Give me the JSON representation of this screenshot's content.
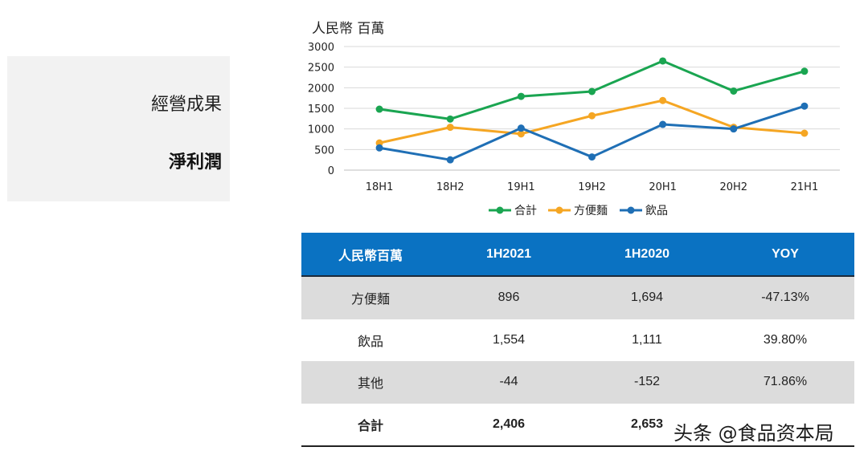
{
  "side": {
    "title": "經營成果",
    "subtitle": "淨利潤"
  },
  "chart_data": {
    "type": "line",
    "ylabel": "人民幣 百萬",
    "categories": [
      "18H1",
      "18H2",
      "19H1",
      "19H2",
      "20H1",
      "20H2",
      "21H1"
    ],
    "ylim": [
      0,
      3000
    ],
    "yticks": [
      0,
      500,
      1000,
      1500,
      2000,
      2500,
      3000
    ],
    "grid": true,
    "legend_position": "bottom",
    "series": [
      {
        "name": "合計",
        "color": "#1aa551",
        "values": [
          1480,
          1240,
          1790,
          1910,
          2650,
          1920,
          2400
        ]
      },
      {
        "name": "方便麵",
        "color": "#f5a623",
        "values": [
          660,
          1040,
          880,
          1320,
          1690,
          1040,
          896
        ]
      },
      {
        "name": "飲品",
        "color": "#1f6fb5",
        "values": [
          540,
          250,
          1020,
          320,
          1110,
          1000,
          1554
        ]
      }
    ]
  },
  "table": {
    "headers": [
      "人民幣百萬",
      "1H2021",
      "1H2020",
      "YOY"
    ],
    "rows": [
      [
        "方便麵",
        "896",
        "1,694",
        "-47.13%"
      ],
      [
        "飲品",
        "1,554",
        "1,111",
        "39.80%"
      ],
      [
        "其他",
        "-44",
        "-152",
        "71.86%"
      ],
      [
        "合計",
        "2,406",
        "2,653",
        ""
      ]
    ]
  },
  "watermark": "头条 @食品资本局"
}
